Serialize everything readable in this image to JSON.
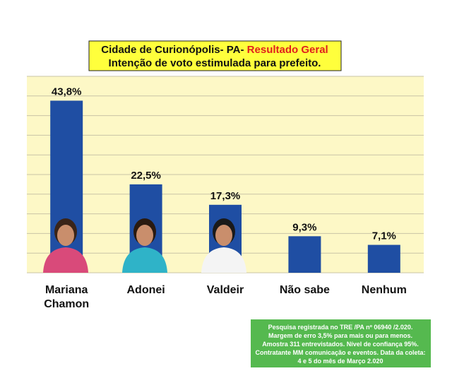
{
  "chart_data": {
    "type": "bar",
    "title_parts": [
      "Cidade de Curionópolis- PA- ",
      "Resultado Geral"
    ],
    "subtitle": "Intenção de voto estimulada para prefeito.",
    "categories": [
      "Mariana Chamon",
      "Adonei",
      "Valdeir",
      "Não sabe",
      "Nenhum"
    ],
    "values": [
      43.8,
      22.5,
      17.3,
      9.3,
      7.1
    ],
    "value_labels": [
      "43,8%",
      "22,5%",
      "17,3%",
      "9,3%",
      "7,1%"
    ],
    "color": "#1f4ea3",
    "ylim": [
      0,
      50
    ],
    "yticks": [
      0,
      5,
      10,
      15,
      20,
      25,
      30,
      35,
      40,
      45,
      50
    ],
    "grid": true,
    "note": [
      "Pesquisa  registrada  no TRE /PA nº 06940 /2.020.",
      "Margem de erro 3,5% para   mais ou para menos.",
      "Amostra 311 entrevistados.  Nível de confiança 95%.",
      "Contratante MM comunicação e eventos. Data da coleta:",
      "4 e 5 do mês de Março 2.020"
    ]
  }
}
